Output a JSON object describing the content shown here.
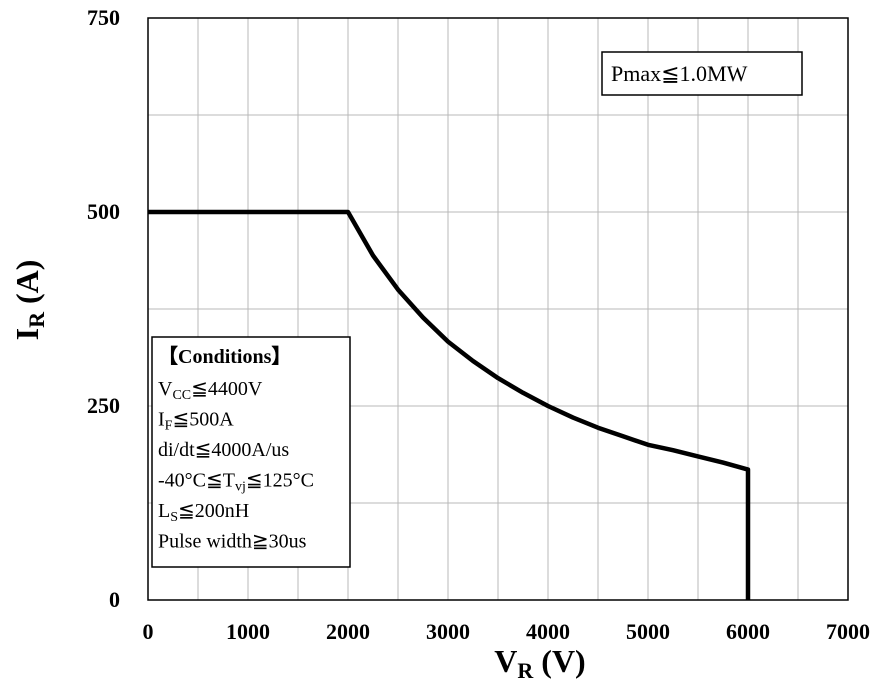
{
  "chart_data": {
    "type": "line",
    "xlabel": {
      "main": "V",
      "sub": "R",
      "unit": " (V)"
    },
    "ylabel": {
      "main": "I",
      "sub": "R",
      "unit": " (A)"
    },
    "xlim": [
      0,
      7000
    ],
    "ylim": [
      0,
      750
    ],
    "xticks": [
      0,
      1000,
      2000,
      3000,
      4000,
      5000,
      6000,
      7000
    ],
    "xtick_labels": [
      "0",
      "1000",
      "2000",
      "3000",
      "4000",
      "5000",
      "6000",
      "7000"
    ],
    "yticks": [
      0,
      250,
      500,
      750
    ],
    "ytick_labels": [
      "0",
      "250",
      "500",
      "750"
    ],
    "x_minor_step": 500,
    "y_minor_step": 125,
    "grid": true,
    "line_color": "#000000",
    "grid_color": "#b8b8b8",
    "series": [
      {
        "values": [
          [
            0,
            500
          ],
          [
            2000,
            500
          ],
          [
            2250,
            444
          ],
          [
            2500,
            400
          ],
          [
            2750,
            364
          ],
          [
            3000,
            333
          ],
          [
            3250,
            308
          ],
          [
            3500,
            286
          ],
          [
            3750,
            267
          ],
          [
            4000,
            250
          ],
          [
            4250,
            235
          ],
          [
            4500,
            222
          ],
          [
            4750,
            211
          ],
          [
            5000,
            200
          ],
          [
            5250,
            193
          ],
          [
            5500,
            185
          ],
          [
            5750,
            177
          ],
          [
            6000,
            168
          ],
          [
            6000,
            0
          ]
        ]
      }
    ],
    "annotation": "Pmax≦1.0MW",
    "conditions": {
      "title": "【Conditions】",
      "lines": [
        {
          "a": "V",
          "sub": "CC",
          "b": "≦4400V"
        },
        {
          "a": "I",
          "sub": "F",
          "b": "≦500A"
        },
        {
          "a": "di/dt≦4000A/us",
          "sub": "",
          "b": ""
        },
        {
          "a": "-40°C≦T",
          "sub": "vj",
          "b": "≦125°C"
        },
        {
          "a": "L",
          "sub": "S",
          "b": "≦200nH"
        },
        {
          "a": "Pulse width≧30us",
          "sub": "",
          "b": ""
        }
      ]
    }
  }
}
